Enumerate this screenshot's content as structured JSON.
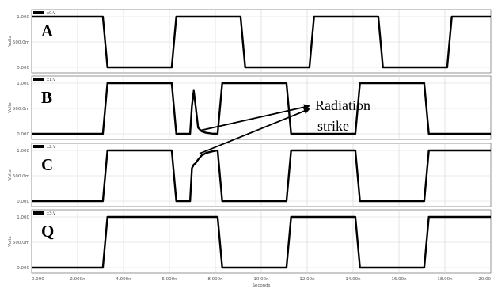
{
  "chart_data": {
    "type": "line",
    "title": "",
    "xlabel": "Seconds",
    "xlim": [
      0,
      20
    ],
    "x_ticks": [
      "0.000",
      "2.000n",
      "4.000n",
      "6.000n",
      "8.000n",
      "10.00n",
      "12.00n",
      "14.00n",
      "16.00n",
      "18.00n",
      "20.00"
    ],
    "panels": [
      {
        "label": "A",
        "legend": "x0:V",
        "ylabel": "Volts",
        "ylim": [
          0,
          1
        ],
        "y_ticks": [
          "0.000",
          "500.0m",
          "1.000"
        ],
        "x": [
          0,
          3.1,
          3.3,
          6.1,
          6.3,
          9.1,
          9.3,
          12.1,
          12.3,
          15.1,
          15.3,
          18.1,
          18.3,
          20
        ],
        "y": [
          1,
          1,
          0,
          0,
          1,
          1,
          0,
          0,
          1,
          1,
          0,
          0,
          1,
          1
        ]
      },
      {
        "label": "B",
        "legend": "x1:V",
        "ylabel": "Volts",
        "ylim": [
          0,
          1
        ],
        "y_ticks": [
          "0.000",
          "500.0m",
          "1.000"
        ],
        "x": [
          0,
          3.1,
          3.3,
          6.1,
          6.3,
          6.9,
          6.98,
          7.06,
          7.14,
          7.25,
          7.4,
          7.6,
          7.85,
          8.1,
          8.3,
          11.1,
          11.3,
          14.1,
          14.3,
          17.1,
          17.3,
          20
        ],
        "y": [
          0,
          0,
          1,
          1,
          0,
          0,
          0.55,
          0.85,
          0.55,
          0.12,
          0.05,
          0.02,
          0.005,
          0,
          1,
          1,
          0,
          0,
          1,
          1,
          0,
          0
        ]
      },
      {
        "label": "C",
        "legend": "x2:V",
        "ylabel": "Volts",
        "ylim": [
          0,
          1
        ],
        "y_ticks": [
          "0.000",
          "500.0m",
          "1.000"
        ],
        "x": [
          0,
          3.1,
          3.3,
          6.1,
          6.3,
          6.9,
          6.98,
          7.06,
          7.14,
          7.25,
          7.4,
          7.6,
          7.85,
          8.1,
          8.3,
          11.1,
          11.3,
          14.1,
          14.3,
          17.1,
          17.3,
          20
        ],
        "y": [
          0,
          0,
          1,
          1,
          0,
          0,
          0.65,
          0.72,
          0.75,
          0.82,
          0.9,
          0.95,
          0.98,
          1,
          0,
          0,
          1,
          1,
          0,
          0,
          1,
          1
        ]
      },
      {
        "label": "Q",
        "legend": "x3:V",
        "ylabel": "Volts",
        "ylim": [
          0,
          1
        ],
        "y_ticks": [
          "0.000",
          "500.0m",
          "1.000"
        ],
        "x": [
          0,
          3.1,
          3.3,
          8.1,
          8.3,
          11.1,
          11.3,
          14.1,
          14.3,
          17.1,
          17.3,
          20
        ],
        "y": [
          0,
          0,
          1,
          1,
          0,
          0,
          1,
          1,
          0,
          0,
          1,
          1
        ]
      }
    ],
    "annotations": [
      {
        "text": "Radiation strike",
        "lines": [
          "Radiation",
          "strike"
        ]
      }
    ],
    "grid": true,
    "legend_placement": "top-left of each panel"
  }
}
